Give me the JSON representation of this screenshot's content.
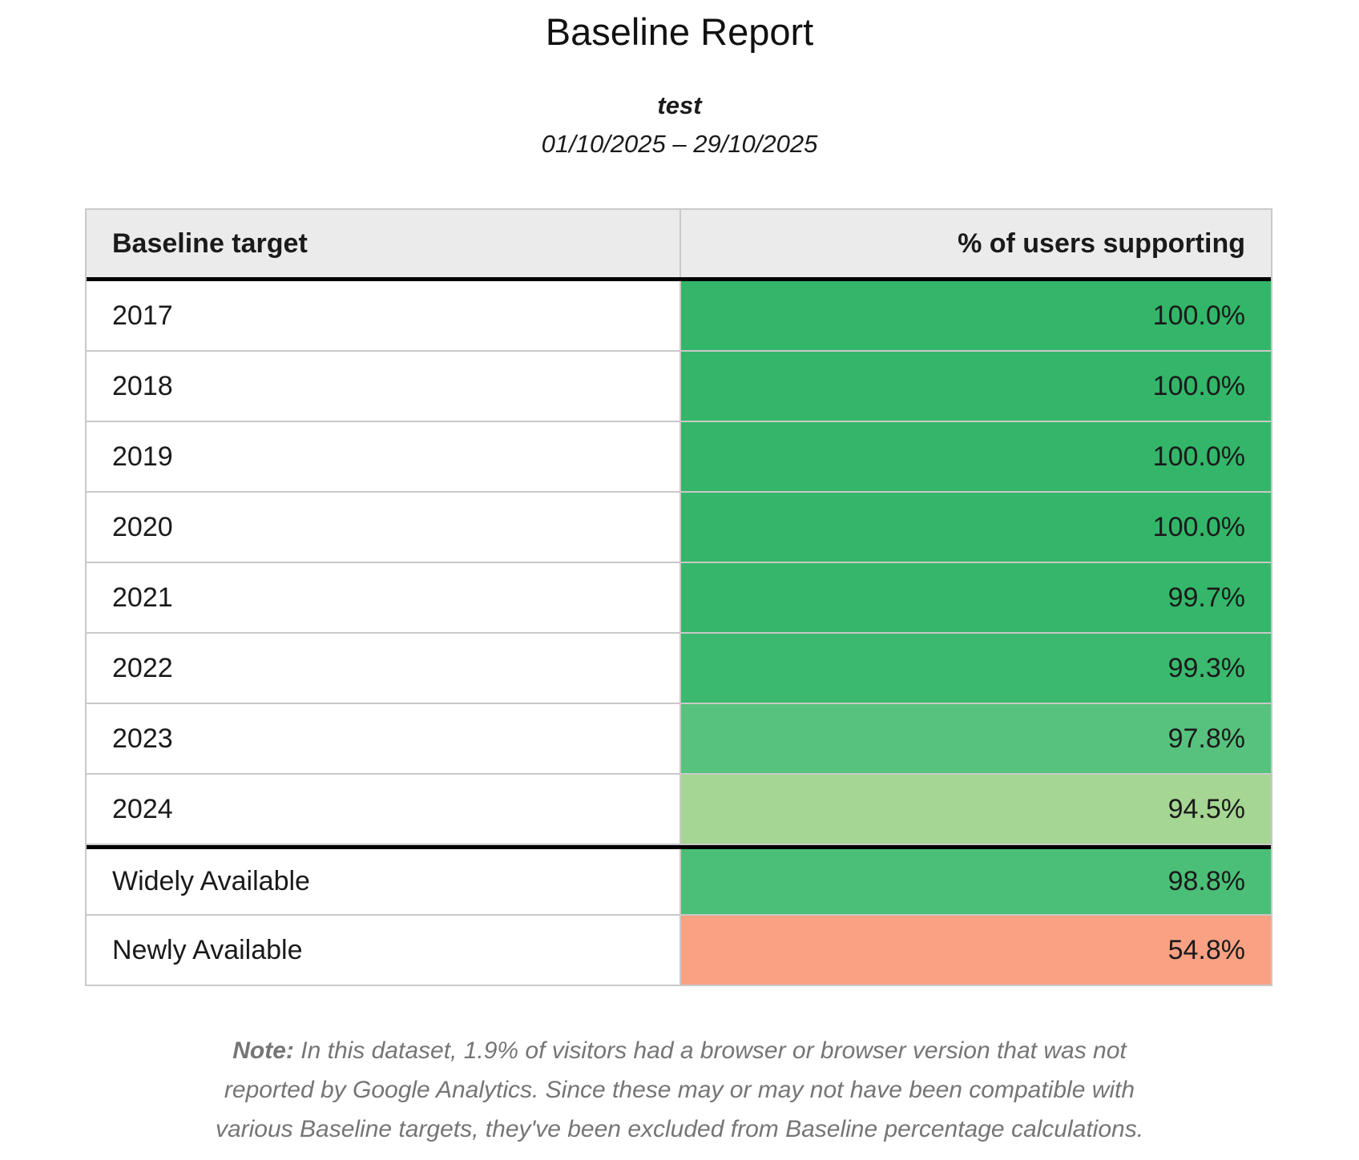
{
  "report": {
    "title": "Baseline Report",
    "subtitle": "test",
    "date_range": "01/10/2025 – 29/10/2025"
  },
  "table": {
    "header": {
      "target": "Baseline target",
      "supporting": "% of users supporting"
    },
    "rows": [
      {
        "label": "2017",
        "value": "100.0%",
        "color": "#33b669"
      },
      {
        "label": "2018",
        "value": "100.0%",
        "color": "#33b669"
      },
      {
        "label": "2019",
        "value": "100.0%",
        "color": "#33b669"
      },
      {
        "label": "2020",
        "value": "100.0%",
        "color": "#33b669"
      },
      {
        "label": "2021",
        "value": "99.7%",
        "color": "#35b76b"
      },
      {
        "label": "2022",
        "value": "99.3%",
        "color": "#3bb96e"
      },
      {
        "label": "2023",
        "value": "97.8%",
        "color": "#57c27e"
      },
      {
        "label": "2024",
        "value": "94.5%",
        "color": "#a6d693"
      },
      {
        "label": "Widely Available",
        "value": "98.8%",
        "color": "#4bbf77",
        "divider_above": true
      },
      {
        "label": "Newly Available",
        "value": "54.8%",
        "color": "#fba183"
      }
    ]
  },
  "note": {
    "label": "Note:",
    "lines": [
      "In this dataset, 1.9% of visitors had a browser or browser version that was not",
      "reported by Google Analytics. Since these may or may not have been compatible with",
      "various Baseline targets, they've been excluded from Baseline percentage calculations."
    ]
  },
  "colors": {
    "header_background": "#ebebeb",
    "table_border": "#c9c9c9",
    "section_divider": "#000000",
    "note_text": "#757575",
    "green_full": "#33b669",
    "green_light": "#a6d693",
    "salmon_low": "#fba183"
  }
}
